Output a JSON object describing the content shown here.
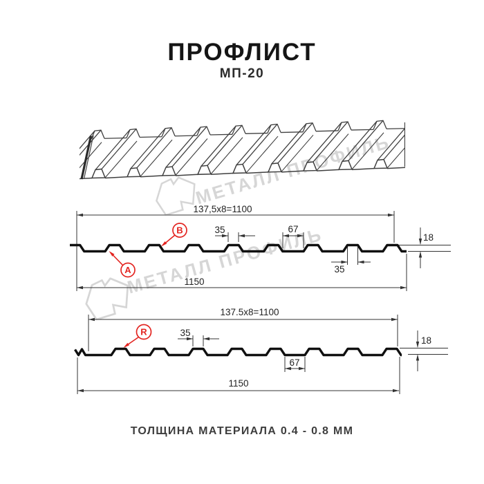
{
  "title": "ПРОФЛИСТ",
  "subtitle": "МП-20",
  "caption": "ТОЛЩИНА МАТЕРИАЛА 0.4 - 0.8 ММ",
  "watermark": {
    "text": "МЕТАЛЛ ПРОФИЛЬ"
  },
  "colors": {
    "accent_red": "#e32420",
    "profile_black": "#101010",
    "dim_line": "#333333",
    "watermark_gray": "#d6d6d6",
    "drawing_gray": "#3f3f3f"
  },
  "profile1": {
    "dim_top": "137,5x8=1100",
    "dim_rib_top": "35",
    "dim_valley": "67",
    "dim_height": "18",
    "dim_rib_bottom": "35",
    "dim_total": "1150",
    "label_a": "A",
    "label_b": "B"
  },
  "profile2": {
    "dim_top": "137.5x8=1100",
    "dim_rib_top": "35",
    "dim_valley": "67",
    "dim_height": "18",
    "dim_total": "1150",
    "label_r": "R"
  }
}
